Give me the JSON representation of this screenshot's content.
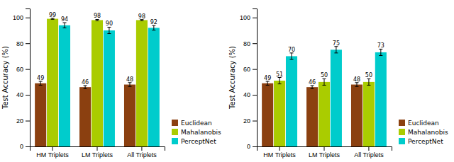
{
  "chart_data": [
    {
      "type": "bar",
      "ylabel": "Test Accuracy (%)",
      "categories": [
        "HM Triplets",
        "LM Triplets",
        "All Triplets"
      ],
      "series": [
        {
          "name": "Euclidean",
          "color": "#8B4010",
          "values": [
            49,
            46,
            48
          ],
          "errors": [
            1.5,
            1.2,
            1.5
          ]
        },
        {
          "name": "Mahalanobis",
          "color": "#AACC00",
          "values": [
            99,
            98,
            98
          ],
          "errors": [
            0.4,
            0.5,
            0.4
          ]
        },
        {
          "name": "PerceptNet",
          "color": "#00CCCC",
          "values": [
            94,
            90,
            92
          ],
          "errors": [
            2.0,
            2.5,
            1.8
          ]
        }
      ],
      "ylim": [
        0,
        107
      ],
      "yticks": [
        0,
        20,
        40,
        60,
        80,
        100
      ],
      "grid": false,
      "legend": "lower right",
      "data_labels": true
    },
    {
      "type": "bar",
      "ylabel": "Test Accuracy (%)",
      "categories": [
        "HM Triplets",
        "LM Triplets",
        "All Triplets"
      ],
      "series": [
        {
          "name": "Euclidean",
          "color": "#8B4010",
          "values": [
            49,
            46,
            48
          ],
          "errors": [
            1.5,
            1.2,
            1.5
          ]
        },
        {
          "name": "Mahalanobis",
          "color": "#AACC00",
          "values": [
            51,
            50,
            50
          ],
          "errors": [
            2.5,
            2.5,
            2.5
          ]
        },
        {
          "name": "PerceptNet",
          "color": "#00CCCC",
          "values": [
            70,
            75,
            73
          ],
          "errors": [
            2.5,
            2.5,
            2.5
          ]
        }
      ],
      "ylim": [
        0,
        107
      ],
      "yticks": [
        0,
        20,
        40,
        60,
        80,
        100
      ],
      "grid": false,
      "legend": "lower right",
      "data_labels": true
    }
  ]
}
